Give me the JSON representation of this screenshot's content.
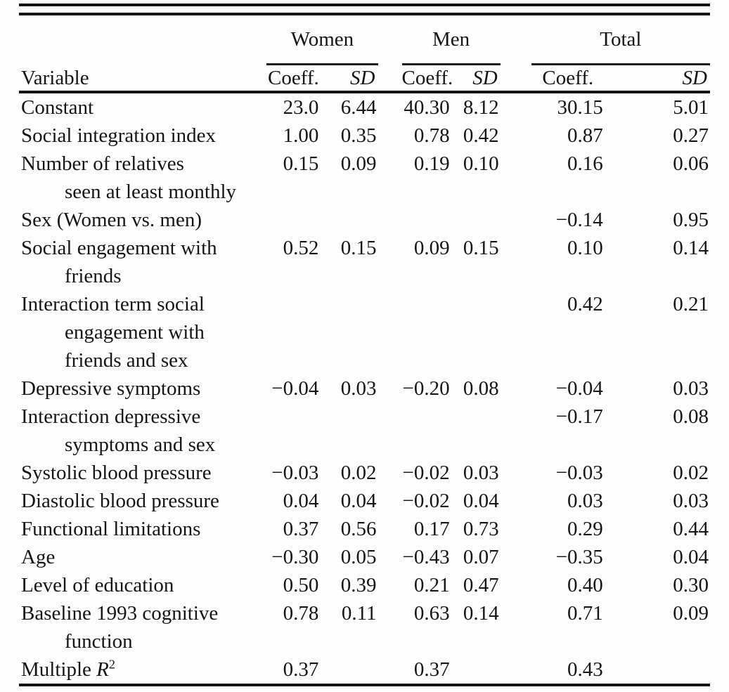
{
  "table": {
    "header": {
      "variable_label": "Variable",
      "groups": [
        {
          "label": "Women"
        },
        {
          "label": "Men"
        },
        {
          "label": "Total"
        }
      ],
      "coeff_label": "Coeff.",
      "sd_label": "SD"
    },
    "rows": [
      {
        "variable": [
          "Constant"
        ],
        "values": [
          "23.0",
          "6.44",
          "40.30",
          "8.12",
          "30.15",
          "5.01"
        ]
      },
      {
        "variable": [
          "Social integration index"
        ],
        "values": [
          "1.00",
          "0.35",
          "0.78",
          "0.42",
          "0.87",
          "0.27"
        ]
      },
      {
        "variable": [
          "Number of relatives",
          "seen at least monthly"
        ],
        "values": [
          "0.15",
          "0.09",
          "0.19",
          "0.10",
          "0.16",
          "0.06"
        ]
      },
      {
        "variable": [
          "Sex (Women vs. men)"
        ],
        "values": [
          "",
          "",
          "",
          "",
          "−0.14",
          "0.95"
        ]
      },
      {
        "variable": [
          "Social engagement with",
          "friends"
        ],
        "values": [
          "0.52",
          "0.15",
          "0.09",
          "0.15",
          "0.10",
          "0.14"
        ]
      },
      {
        "variable": [
          "Interaction term social",
          "engagement with",
          "friends and sex"
        ],
        "values": [
          "",
          "",
          "",
          "",
          "0.42",
          "0.21"
        ]
      },
      {
        "variable": [
          "Depressive symptoms"
        ],
        "values": [
          "−0.04",
          "0.03",
          "−0.20",
          "0.08",
          "−0.04",
          "0.03"
        ]
      },
      {
        "variable": [
          "Interaction depressive",
          "symptoms and sex"
        ],
        "values": [
          "",
          "",
          "",
          "",
          "−0.17",
          "0.08"
        ]
      },
      {
        "variable": [
          "Systolic blood pressure"
        ],
        "values": [
          "−0.03",
          "0.02",
          "−0.02",
          "0.03",
          "−0.03",
          "0.02"
        ]
      },
      {
        "variable": [
          "Diastolic blood pressure"
        ],
        "values": [
          "0.04",
          "0.04",
          "−0.02",
          "0.04",
          "0.03",
          "0.03"
        ]
      },
      {
        "variable": [
          "Functional limitations"
        ],
        "values": [
          "0.37",
          "0.56",
          "0.17",
          "0.73",
          "0.29",
          "0.44"
        ]
      },
      {
        "variable": [
          "Age"
        ],
        "values": [
          "−0.30",
          "0.05",
          "−0.43",
          "0.07",
          "−0.35",
          "0.04"
        ]
      },
      {
        "variable": [
          "Level of education"
        ],
        "values": [
          "0.50",
          "0.39",
          "0.21",
          "0.47",
          "0.40",
          "0.30"
        ]
      },
      {
        "variable": [
          "Baseline 1993 cognitive",
          "function"
        ],
        "values": [
          "0.78",
          "0.11",
          "0.63",
          "0.14",
          "0.71",
          "0.09"
        ]
      },
      {
        "variable_rich": {
          "prefix": "Multiple ",
          "symbol": "R",
          "sup": "2"
        },
        "values": [
          "0.37",
          "",
          "0.37",
          "",
          "0.43",
          ""
        ]
      }
    ]
  },
  "colors": {
    "background": "#fefefe",
    "text": "#151515",
    "rule": "#151515"
  }
}
